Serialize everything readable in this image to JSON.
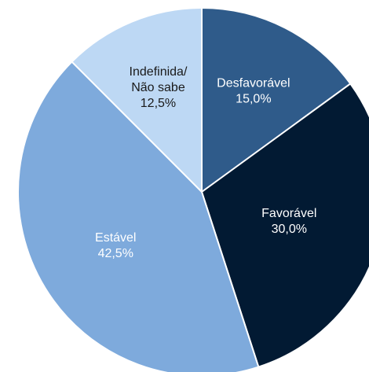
{
  "chart_data": {
    "type": "pie",
    "categories": [
      "Desfavorável",
      "Favorável",
      "Estável",
      "Indefinida/\nNão sabe"
    ],
    "values": [
      15.0,
      30.0,
      42.5,
      12.5
    ],
    "value_labels": [
      "15,0%",
      "30,0%",
      "42,5%",
      "12,5%"
    ],
    "colors": [
      "#2f5b8a",
      "#021a33",
      "#7eaadc",
      "#bdd8f4"
    ],
    "label_colors": [
      "#ffffff",
      "#ffffff",
      "#ffffff",
      "#1a1a1a"
    ],
    "start": "12 o'clock",
    "direction": "clockwise",
    "legend": "none"
  }
}
